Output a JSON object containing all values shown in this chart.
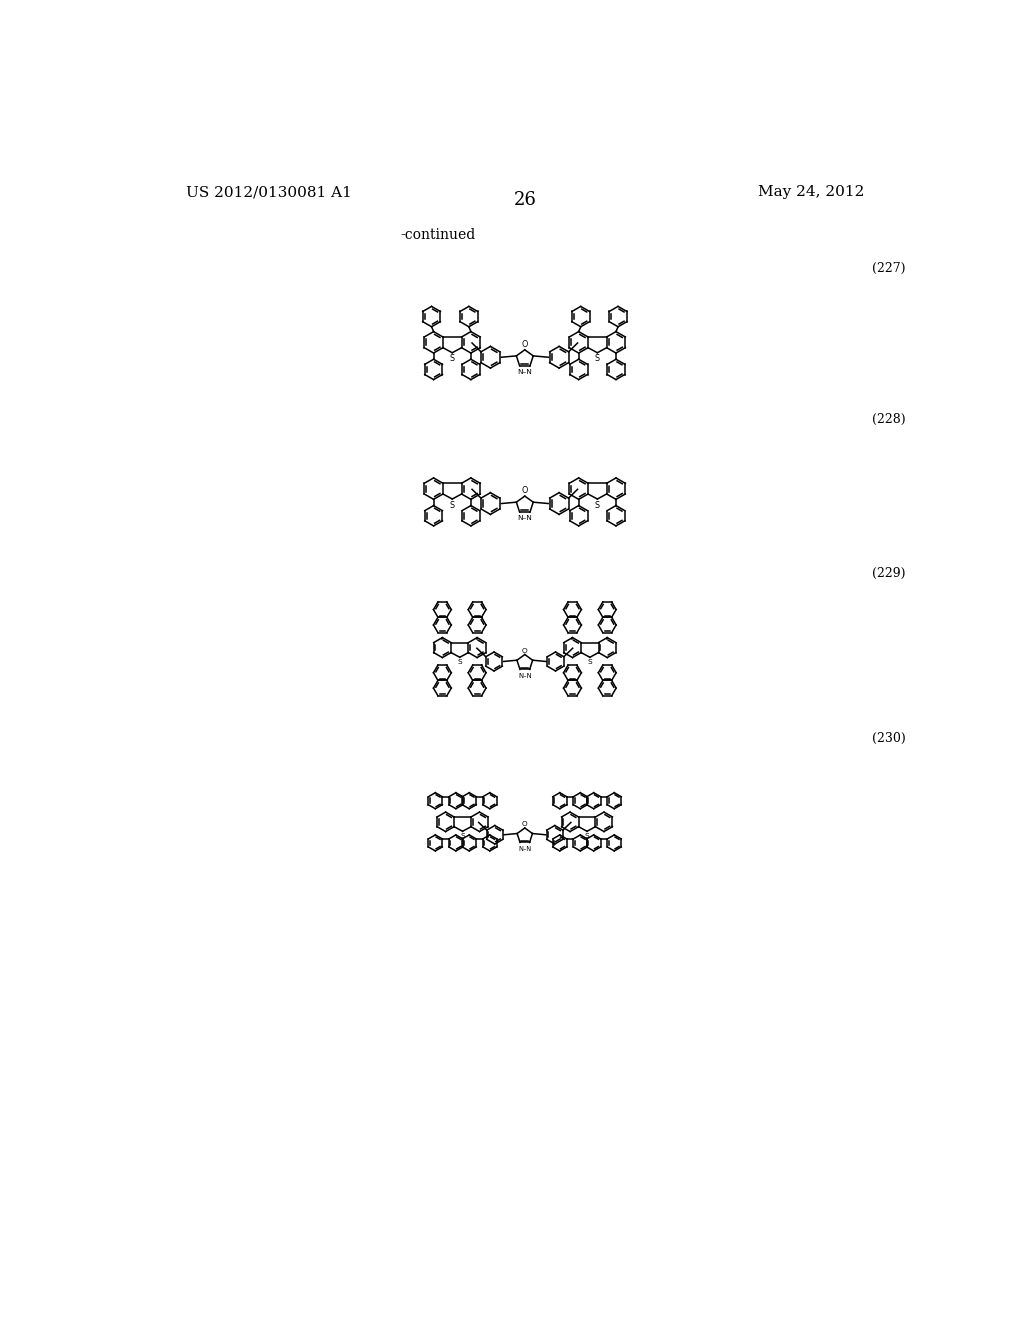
{
  "title_left": "US 2012/0130081 A1",
  "title_right": "May 24, 2012",
  "page_number": "26",
  "continued_text": "-continued",
  "compound_numbers": [
    "(227)",
    "(228)",
    "(229)",
    "(230)"
  ],
  "background_color": "#ffffff",
  "line_color": "#000000",
  "font_size_header": 11,
  "font_size_page": 13,
  "font_size_compound": 9
}
